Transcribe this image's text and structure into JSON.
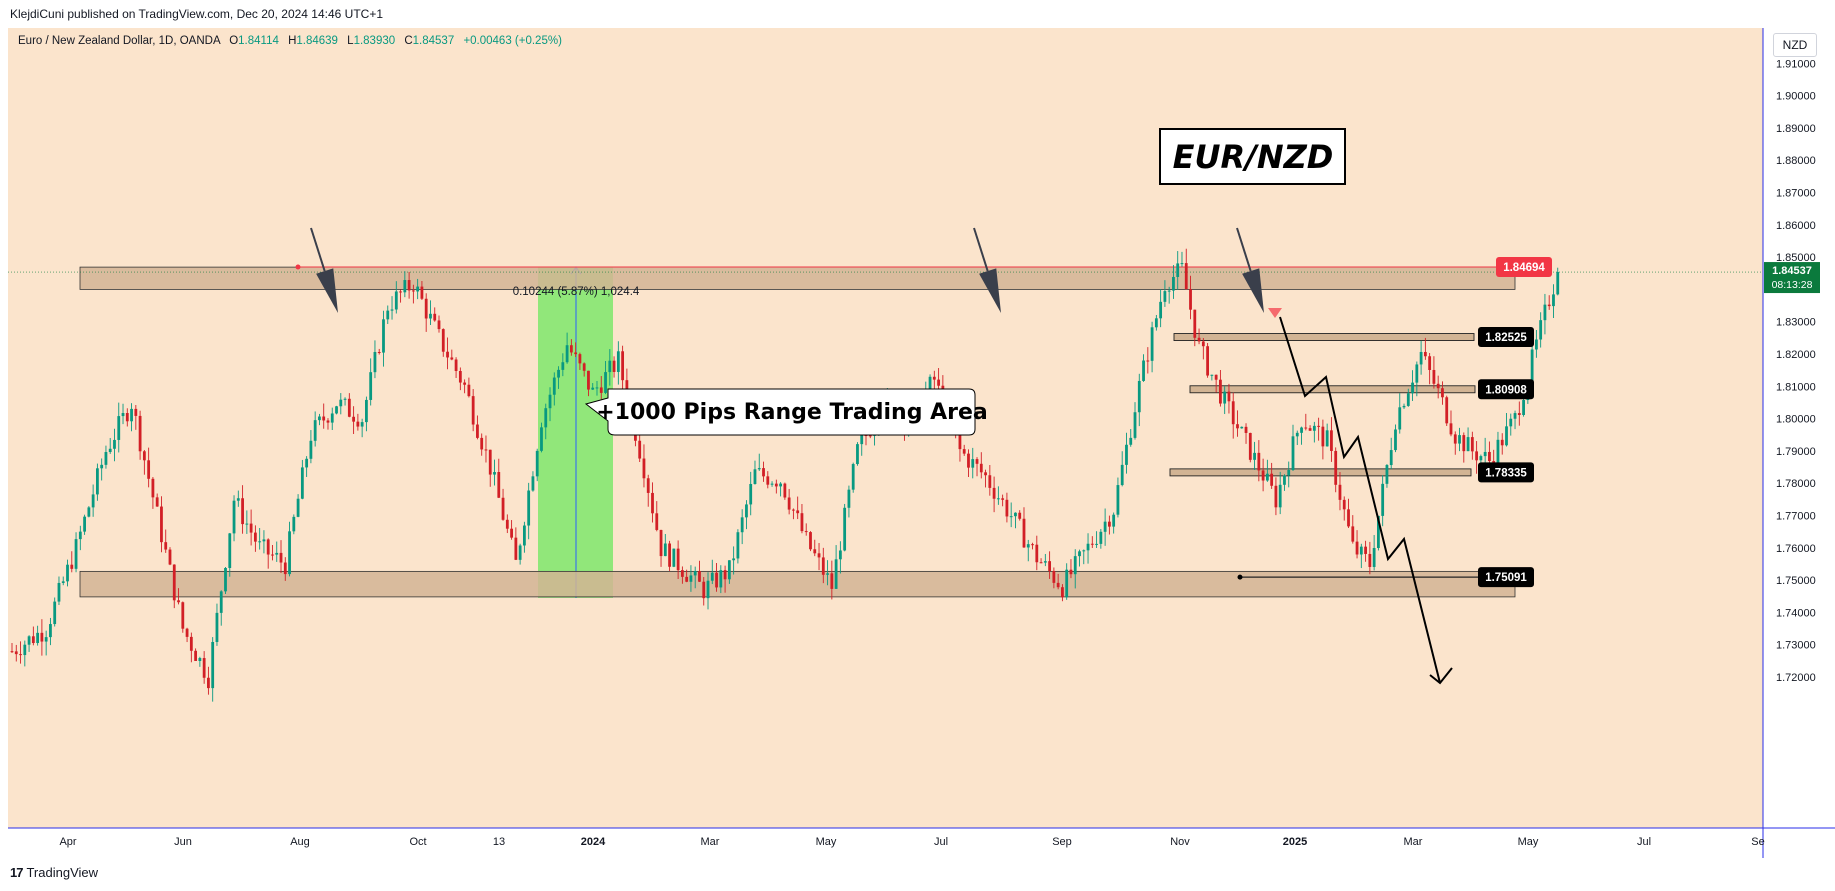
{
  "header": {
    "publisher": "KlejdiCuni published on TradingView.com, Dec 20, 2024 14:46 UTC+1"
  },
  "legend": {
    "symbol": "Euro / New Zealand Dollar, 1D, OANDA",
    "open_label": "O",
    "open": "1.84114",
    "high_label": "H",
    "high": "1.84639",
    "low_label": "L",
    "low": "1.83930",
    "close_label": "C",
    "close": "1.84537",
    "change": "+0.00463 (+0.25%)"
  },
  "currency_button": "NZD",
  "footer": {
    "brand": "TradingView"
  },
  "colors": {
    "background": "#fbe4cc",
    "zone_fill": "#d2b494",
    "up_candle": "#089981",
    "down_candle": "#d21f26",
    "range_highlight": "#7ee86b",
    "axis_line": "#2a2ee8",
    "last_price": "#0b7a3d",
    "resistance_label": "#f23645"
  },
  "chart_data": {
    "type": "candlestick",
    "title": "EUR/NZD",
    "y_axis": {
      "ticks": [
        "1.91000",
        "1.90000",
        "1.89000",
        "1.88000",
        "1.87000",
        "1.86000",
        "1.85000",
        "1.83000",
        "1.82000",
        "1.81000",
        "1.80000",
        "1.79000",
        "1.78000",
        "1.77000",
        "1.76000",
        "1.75000",
        "1.74000",
        "1.73000",
        "1.72000"
      ],
      "ylim": [
        1.712,
        1.917
      ],
      "side": "right"
    },
    "x_axis": {
      "ticks": [
        "Apr",
        "Jun",
        "Aug",
        "Oct",
        "13",
        "2024",
        "Mar",
        "May",
        "Jul",
        "Sep",
        "Nov",
        "2025",
        "Mar",
        "May",
        "Jul",
        "Se"
      ]
    },
    "price_path": [
      [
        0,
        1.728
      ],
      [
        8,
        1.735
      ],
      [
        15,
        1.76
      ],
      [
        22,
        1.79
      ],
      [
        28,
        1.805
      ],
      [
        34,
        1.77
      ],
      [
        40,
        1.735
      ],
      [
        46,
        1.72
      ],
      [
        52,
        1.775
      ],
      [
        58,
        1.76
      ],
      [
        64,
        1.755
      ],
      [
        70,
        1.795
      ],
      [
        76,
        1.805
      ],
      [
        82,
        1.8
      ],
      [
        88,
        1.835
      ],
      [
        94,
        1.842
      ],
      [
        100,
        1.825
      ],
      [
        106,
        1.81
      ],
      [
        112,
        1.785
      ],
      [
        118,
        1.755
      ],
      [
        124,
        1.8
      ],
      [
        130,
        1.823
      ],
      [
        136,
        1.808
      ],
      [
        142,
        1.818
      ],
      [
        148,
        1.785
      ],
      [
        152,
        1.76
      ],
      [
        156,
        1.755
      ],
      [
        162,
        1.747
      ],
      [
        168,
        1.753
      ],
      [
        174,
        1.783
      ],
      [
        180,
        1.781
      ],
      [
        186,
        1.762
      ],
      [
        192,
        1.748
      ],
      [
        198,
        1.79
      ],
      [
        204,
        1.805
      ],
      [
        210,
        1.8
      ],
      [
        216,
        1.812
      ],
      [
        222,
        1.79
      ],
      [
        228,
        1.782
      ],
      [
        234,
        1.77
      ],
      [
        240,
        1.757
      ],
      [
        246,
        1.748
      ],
      [
        252,
        1.76
      ],
      [
        258,
        1.772
      ],
      [
        264,
        1.81
      ],
      [
        270,
        1.842
      ],
      [
        274,
        1.846
      ],
      [
        278,
        1.822
      ],
      [
        284,
        1.805
      ],
      [
        290,
        1.79
      ],
      [
        296,
        1.775
      ],
      [
        302,
        1.8
      ],
      [
        308,
        1.793
      ],
      [
        314,
        1.76
      ],
      [
        318,
        1.755
      ],
      [
        324,
        1.8
      ],
      [
        330,
        1.82
      ],
      [
        334,
        1.808
      ],
      [
        338,
        1.795
      ],
      [
        342,
        1.79
      ],
      [
        346,
        1.787
      ],
      [
        352,
        1.8
      ],
      [
        356,
        1.818
      ],
      [
        360,
        1.837
      ],
      [
        362,
        1.84537
      ]
    ],
    "horizontal_zones": [
      {
        "name": "resistance",
        "y_top": 1.8469,
        "y_bottom": 1.84
      },
      {
        "name": "support",
        "y_top": 1.7527,
        "y_bottom": 1.7448
      }
    ],
    "levels": [
      {
        "price": "1.84694",
        "style": "resistance-flag"
      },
      {
        "price": "1.82525",
        "style": "target"
      },
      {
        "price": "1.80908",
        "style": "target"
      },
      {
        "price": "1.78335",
        "style": "target"
      },
      {
        "price": "1.75091",
        "style": "target"
      }
    ],
    "last_price": {
      "price": "1.84537",
      "countdown": "08:13:28"
    },
    "measure_tool": {
      "label": "0.10244 (5.87%) 1,024.4",
      "from": 1.7445,
      "to": 1.8469
    },
    "callout": "+1000 Pips Range Trading Area",
    "annotations": [
      "touch-arrow-aug",
      "touch-arrow-jul",
      "touch-arrow-dec",
      "projected-zigzag-down"
    ]
  }
}
